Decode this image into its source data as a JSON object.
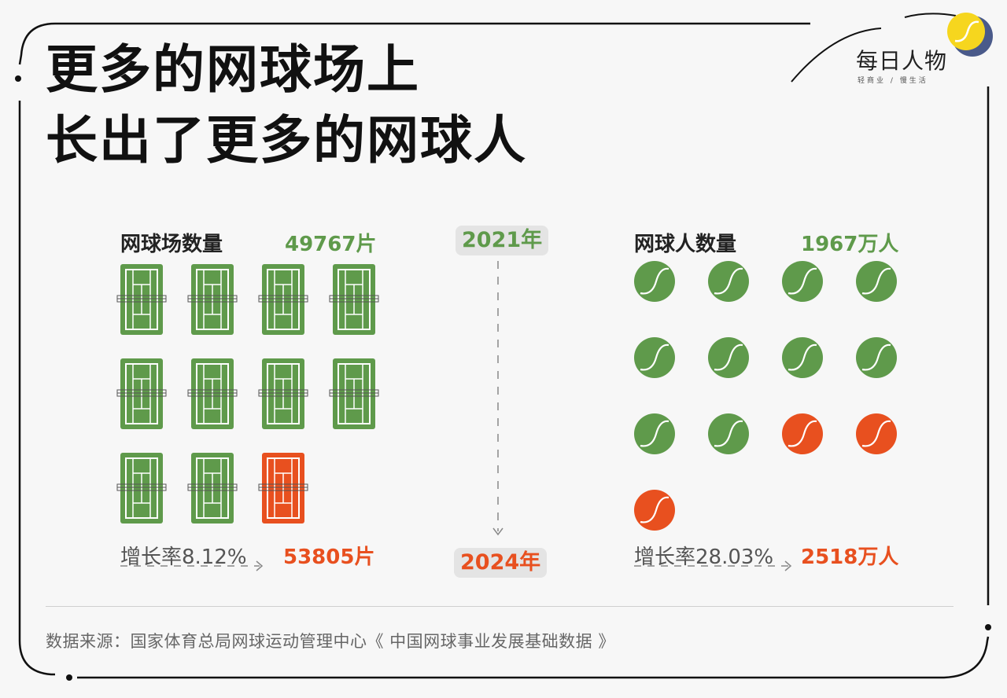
{
  "title": [
    "更多的网球场上",
    "长出了更多的网球人"
  ],
  "logo": {
    "name": "每日人物",
    "tagline": "轻商业 / 慢生活"
  },
  "years": {
    "start": "2021年",
    "end": "2024年"
  },
  "courts": {
    "label": "网球场数量",
    "value_2021": "49767片",
    "value_2024": "53805片",
    "growth": "增长率8.12%",
    "icons": [
      "old",
      "old",
      "old",
      "old",
      "old",
      "old",
      "old",
      "old",
      "old",
      "old",
      "new"
    ]
  },
  "players": {
    "label": "网球人数量",
    "value_2021": "1967万人",
    "value_2024": "2518万人",
    "growth": "增长率28.03%",
    "icons": [
      "old",
      "old",
      "old",
      "old",
      "old",
      "old",
      "old",
      "old",
      "old",
      "old",
      "new",
      "new",
      "new"
    ]
  },
  "colors": {
    "green": "#5f9a4b",
    "orange": "#e8501f",
    "yellow": "#f6d61e",
    "navy": "#4a5a8a"
  },
  "source": "数据来源：国家体育总局网球运动管理中心《 中国网球事业发展基础数据 》",
  "chart_data": {
    "type": "pictogram",
    "categories": [
      "2021年",
      "2024年"
    ],
    "series": [
      {
        "name": "网球场数量",
        "values": [
          49767,
          53805
        ],
        "unit": "片"
      },
      {
        "name": "网球人数量",
        "values": [
          1967,
          2518
        ],
        "unit": "万人"
      }
    ]
  }
}
